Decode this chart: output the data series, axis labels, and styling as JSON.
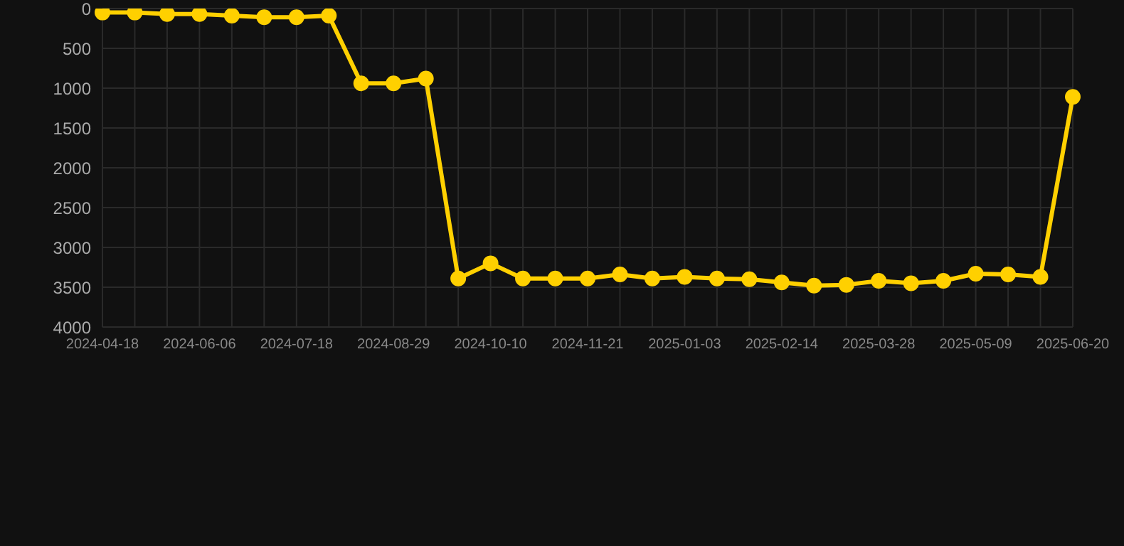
{
  "chart_data": {
    "type": "line",
    "categories": [
      "2024-04-18",
      null,
      null,
      "2024-06-06",
      null,
      null,
      "2024-07-18",
      null,
      null,
      "2024-08-29",
      null,
      null,
      "2024-10-10",
      null,
      null,
      "2024-11-21",
      null,
      null,
      "2025-01-03",
      null,
      null,
      "2025-02-14",
      null,
      null,
      "2025-03-28",
      null,
      null,
      "2025-05-09",
      null,
      null,
      "2025-06-20"
    ],
    "series": [
      {
        "color": "#ffd000",
        "values": [
          50,
          50,
          70,
          70,
          90,
          110,
          110,
          90,
          940,
          940,
          880,
          3390,
          3200,
          3390,
          3390,
          3390,
          3340,
          3390,
          3370,
          3390,
          3400,
          3440,
          3480,
          3470,
          3420,
          3450,
          3420,
          3330,
          3340,
          3370,
          1110
        ]
      }
    ],
    "ylim": [
      4000,
      0
    ],
    "yticks": [
      0,
      500,
      1000,
      1500,
      2000,
      2500,
      3000,
      3500,
      4000
    ],
    "grid": true,
    "marker": "circle",
    "line_style": "solid"
  }
}
